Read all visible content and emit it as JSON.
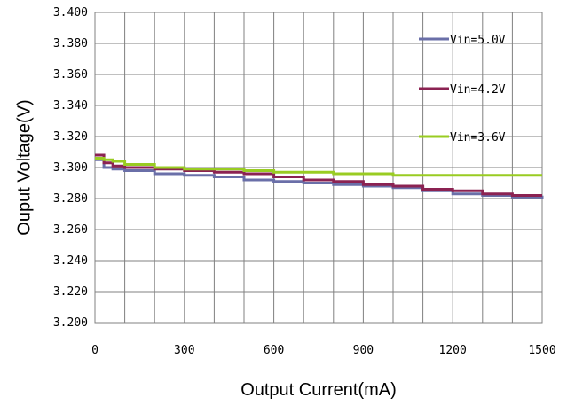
{
  "chart_data": {
    "type": "line",
    "title": "",
    "xlabel": "Output Current(mA)",
    "ylabel": "Ouput Voltage(V)",
    "xlim": [
      0,
      1500
    ],
    "ylim": [
      3.2,
      3.4
    ],
    "x_ticks": [
      "0",
      "300",
      "600",
      "900",
      "1200",
      "1500"
    ],
    "y_ticks": [
      "3.200",
      "3.220",
      "3.240",
      "3.260",
      "3.280",
      "3.300",
      "3.320",
      "3.340",
      "3.360",
      "3.380",
      "3.400"
    ],
    "grid": true,
    "legend_position": "right",
    "series": [
      {
        "name": "Vin=5.0V",
        "color": "#6a6fa8",
        "points": [
          [
            0,
            3.305
          ],
          [
            30,
            3.3
          ],
          [
            60,
            3.299
          ],
          [
            100,
            3.298
          ],
          [
            200,
            3.296
          ],
          [
            300,
            3.295
          ],
          [
            400,
            3.294
          ],
          [
            500,
            3.292
          ],
          [
            600,
            3.291
          ],
          [
            700,
            3.29
          ],
          [
            800,
            3.289
          ],
          [
            900,
            3.288
          ],
          [
            1000,
            3.287
          ],
          [
            1100,
            3.285
          ],
          [
            1200,
            3.283
          ],
          [
            1300,
            3.282
          ],
          [
            1400,
            3.281
          ],
          [
            1500,
            3.28
          ]
        ]
      },
      {
        "name": "Vin=4.2V",
        "color": "#8b2252",
        "points": [
          [
            0,
            3.308
          ],
          [
            30,
            3.303
          ],
          [
            60,
            3.301
          ],
          [
            100,
            3.3
          ],
          [
            200,
            3.299
          ],
          [
            300,
            3.298
          ],
          [
            400,
            3.297
          ],
          [
            500,
            3.296
          ],
          [
            600,
            3.294
          ],
          [
            700,
            3.292
          ],
          [
            800,
            3.291
          ],
          [
            900,
            3.289
          ],
          [
            1000,
            3.288
          ],
          [
            1100,
            3.286
          ],
          [
            1200,
            3.285
          ],
          [
            1300,
            3.283
          ],
          [
            1400,
            3.282
          ],
          [
            1500,
            3.282
          ]
        ]
      },
      {
        "name": "Vin=3.6V",
        "color": "#99cc22",
        "points": [
          [
            0,
            3.306
          ],
          [
            30,
            3.305
          ],
          [
            60,
            3.304
          ],
          [
            100,
            3.302
          ],
          [
            200,
            3.3
          ],
          [
            300,
            3.299
          ],
          [
            400,
            3.299
          ],
          [
            500,
            3.298
          ],
          [
            600,
            3.297
          ],
          [
            700,
            3.297
          ],
          [
            800,
            3.296
          ],
          [
            900,
            3.296
          ],
          [
            1000,
            3.295
          ],
          [
            1100,
            3.295
          ],
          [
            1200,
            3.295
          ],
          [
            1300,
            3.295
          ],
          [
            1400,
            3.295
          ],
          [
            1500,
            3.295
          ]
        ]
      }
    ]
  }
}
